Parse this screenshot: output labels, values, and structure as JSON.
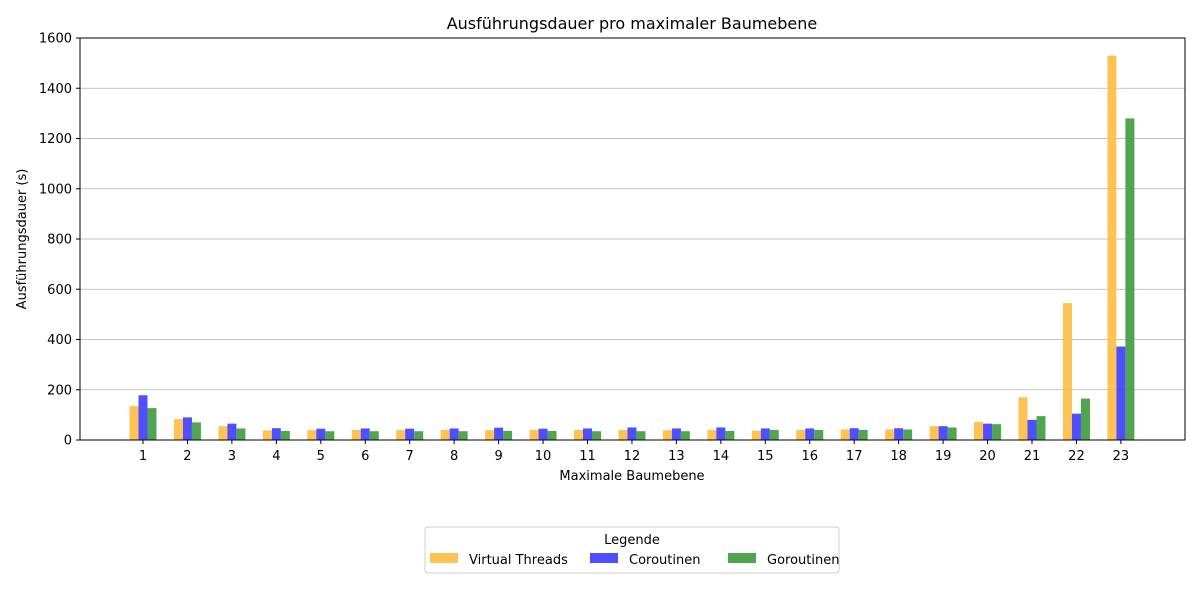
{
  "chart_data": {
    "type": "bar",
    "title": "Ausführungsdauer pro maximaler Baumebene",
    "xlabel": "Maximale Baumebene",
    "ylabel": "Ausführungsdauer (s)",
    "ylim": [
      0,
      1600
    ],
    "yticks": [
      "0",
      "200",
      "400",
      "600",
      "800",
      "1000",
      "1200",
      "1400",
      "1600"
    ],
    "grid": "y",
    "legend_title": "Legende",
    "legend_position": "bottom-center",
    "categories": [
      "1",
      "2",
      "3",
      "4",
      "5",
      "6",
      "7",
      "8",
      "9",
      "10",
      "11",
      "12",
      "13",
      "14",
      "15",
      "16",
      "17",
      "18",
      "19",
      "20",
      "21",
      "22",
      "23"
    ],
    "series": [
      {
        "name": "Virtual Threads",
        "color": "#FFBF4C",
        "values": [
          135,
          83,
          55,
          38,
          39,
          40,
          40,
          40,
          39,
          40,
          40,
          40,
          39,
          40,
          37,
          40,
          42,
          42,
          55,
          72,
          170,
          545,
          1530
        ]
      },
      {
        "name": "Coroutinen",
        "color": "#4646FF",
        "values": [
          178,
          90,
          65,
          47,
          45,
          46,
          45,
          46,
          49,
          45,
          46,
          50,
          46,
          50,
          46,
          46,
          47,
          47,
          55,
          65,
          80,
          105,
          372
        ]
      },
      {
        "name": "Goroutinen",
        "color": "#48A048",
        "values": [
          127,
          70,
          46,
          36,
          35,
          35,
          35,
          35,
          36,
          36,
          35,
          35,
          35,
          36,
          40,
          40,
          40,
          42,
          50,
          63,
          95,
          165,
          1280
        ]
      }
    ]
  }
}
